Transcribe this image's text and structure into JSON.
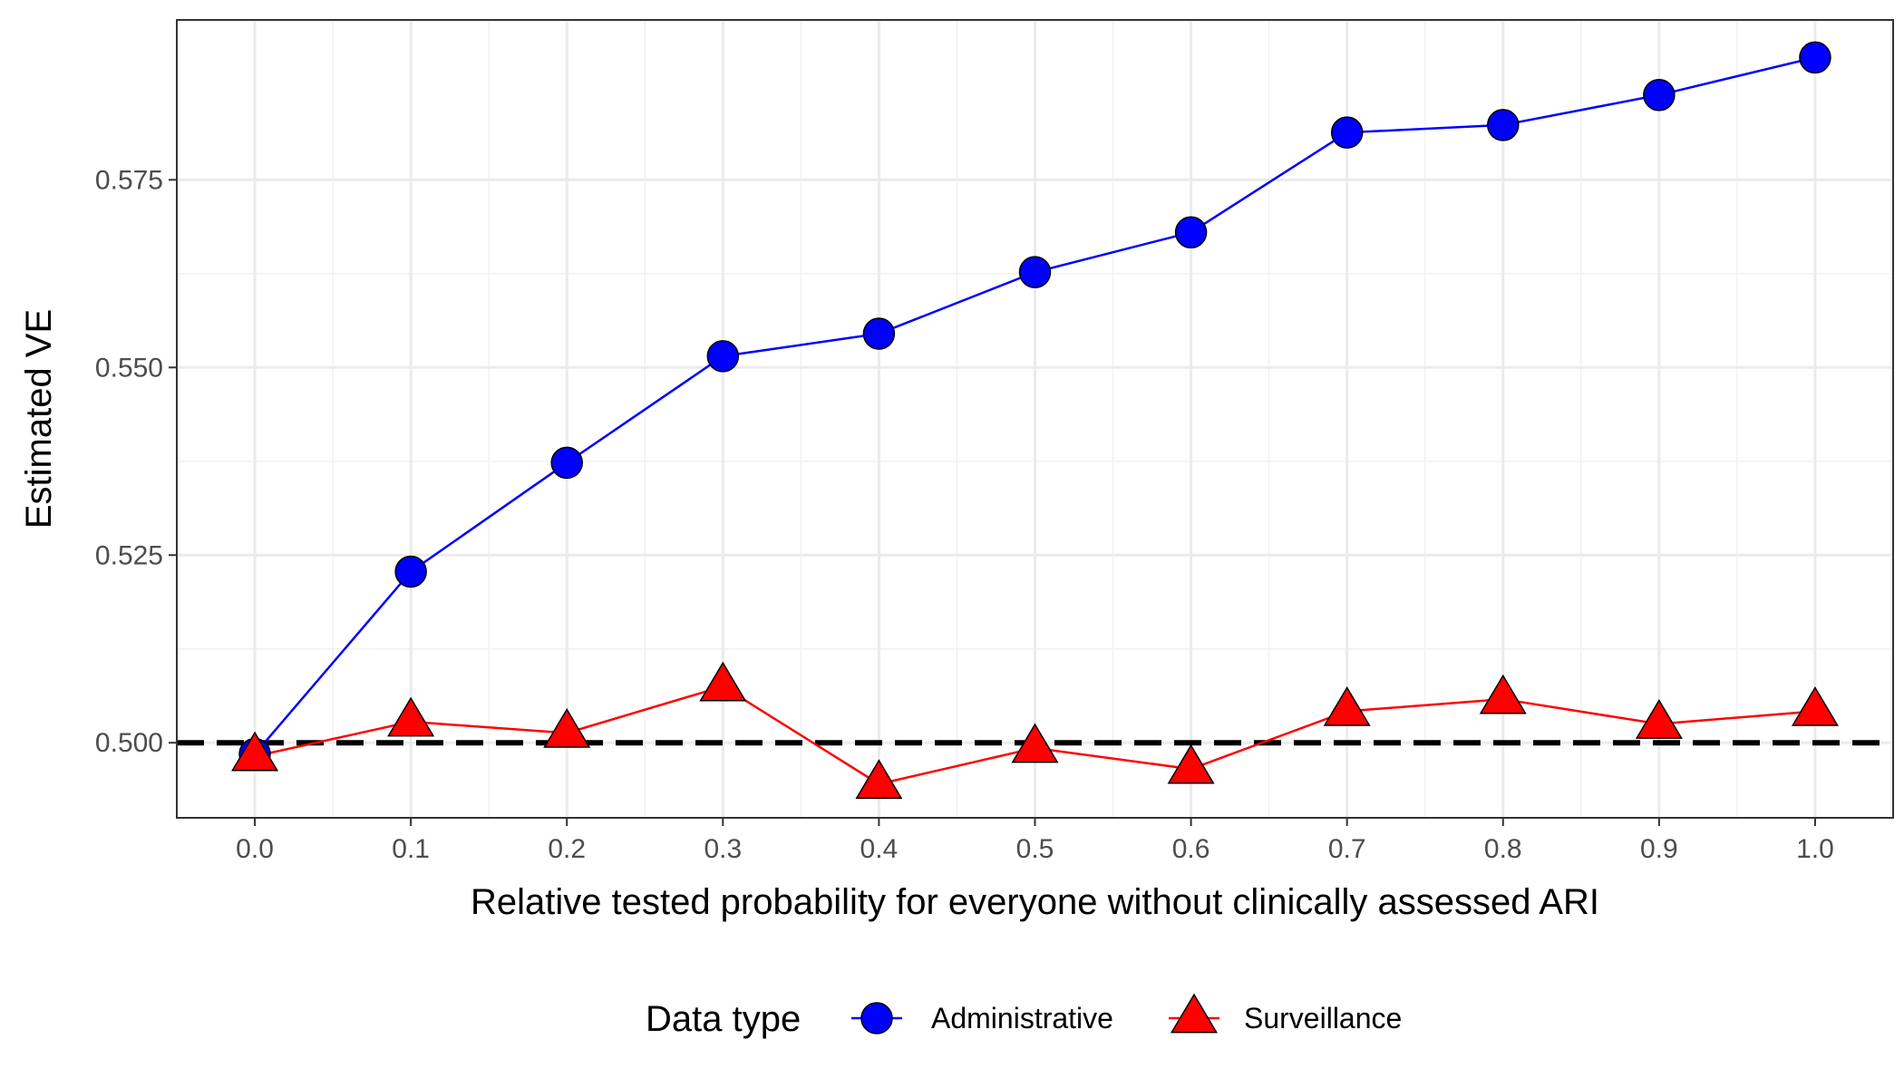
{
  "chart_data": {
    "type": "line",
    "xlabel": "Relative tested probability for everyone without clinically assessed ARI",
    "ylabel": "Estimated VE",
    "x": [
      0.0,
      0.1,
      0.2,
      0.3,
      0.4,
      0.5,
      0.6,
      0.7,
      0.8,
      0.9,
      1.0
    ],
    "x_tick_labels": [
      "0.0",
      "0.1",
      "0.2",
      "0.3",
      "0.4",
      "0.5",
      "0.6",
      "0.7",
      "0.8",
      "0.9",
      "1.0"
    ],
    "y_ticks": [
      0.5,
      0.525,
      0.55,
      0.575
    ],
    "y_tick_labels": [
      "0.500",
      "0.525",
      "0.550",
      "0.575"
    ],
    "xlim": [
      -0.05,
      1.05
    ],
    "ylim": [
      0.49,
      0.5963
    ],
    "grid": true,
    "reference_line": {
      "y": 0.5,
      "style": "dashed",
      "color": "#000000"
    },
    "legend": {
      "title": "Data type",
      "position": "bottom"
    },
    "series": [
      {
        "name": "Administrative",
        "marker": "circle",
        "color": "#0000ff",
        "values": [
          0.4985,
          0.5228,
          0.5373,
          0.5515,
          0.5545,
          0.5627,
          0.568,
          0.5813,
          0.5823,
          0.5863,
          0.5913
        ]
      },
      {
        "name": "Surveillance",
        "marker": "triangle",
        "color": "#ff0000",
        "values": [
          0.4982,
          0.5028,
          0.5013,
          0.5075,
          0.4945,
          0.4993,
          0.4965,
          0.5042,
          0.5058,
          0.5025,
          0.5042
        ]
      }
    ]
  }
}
